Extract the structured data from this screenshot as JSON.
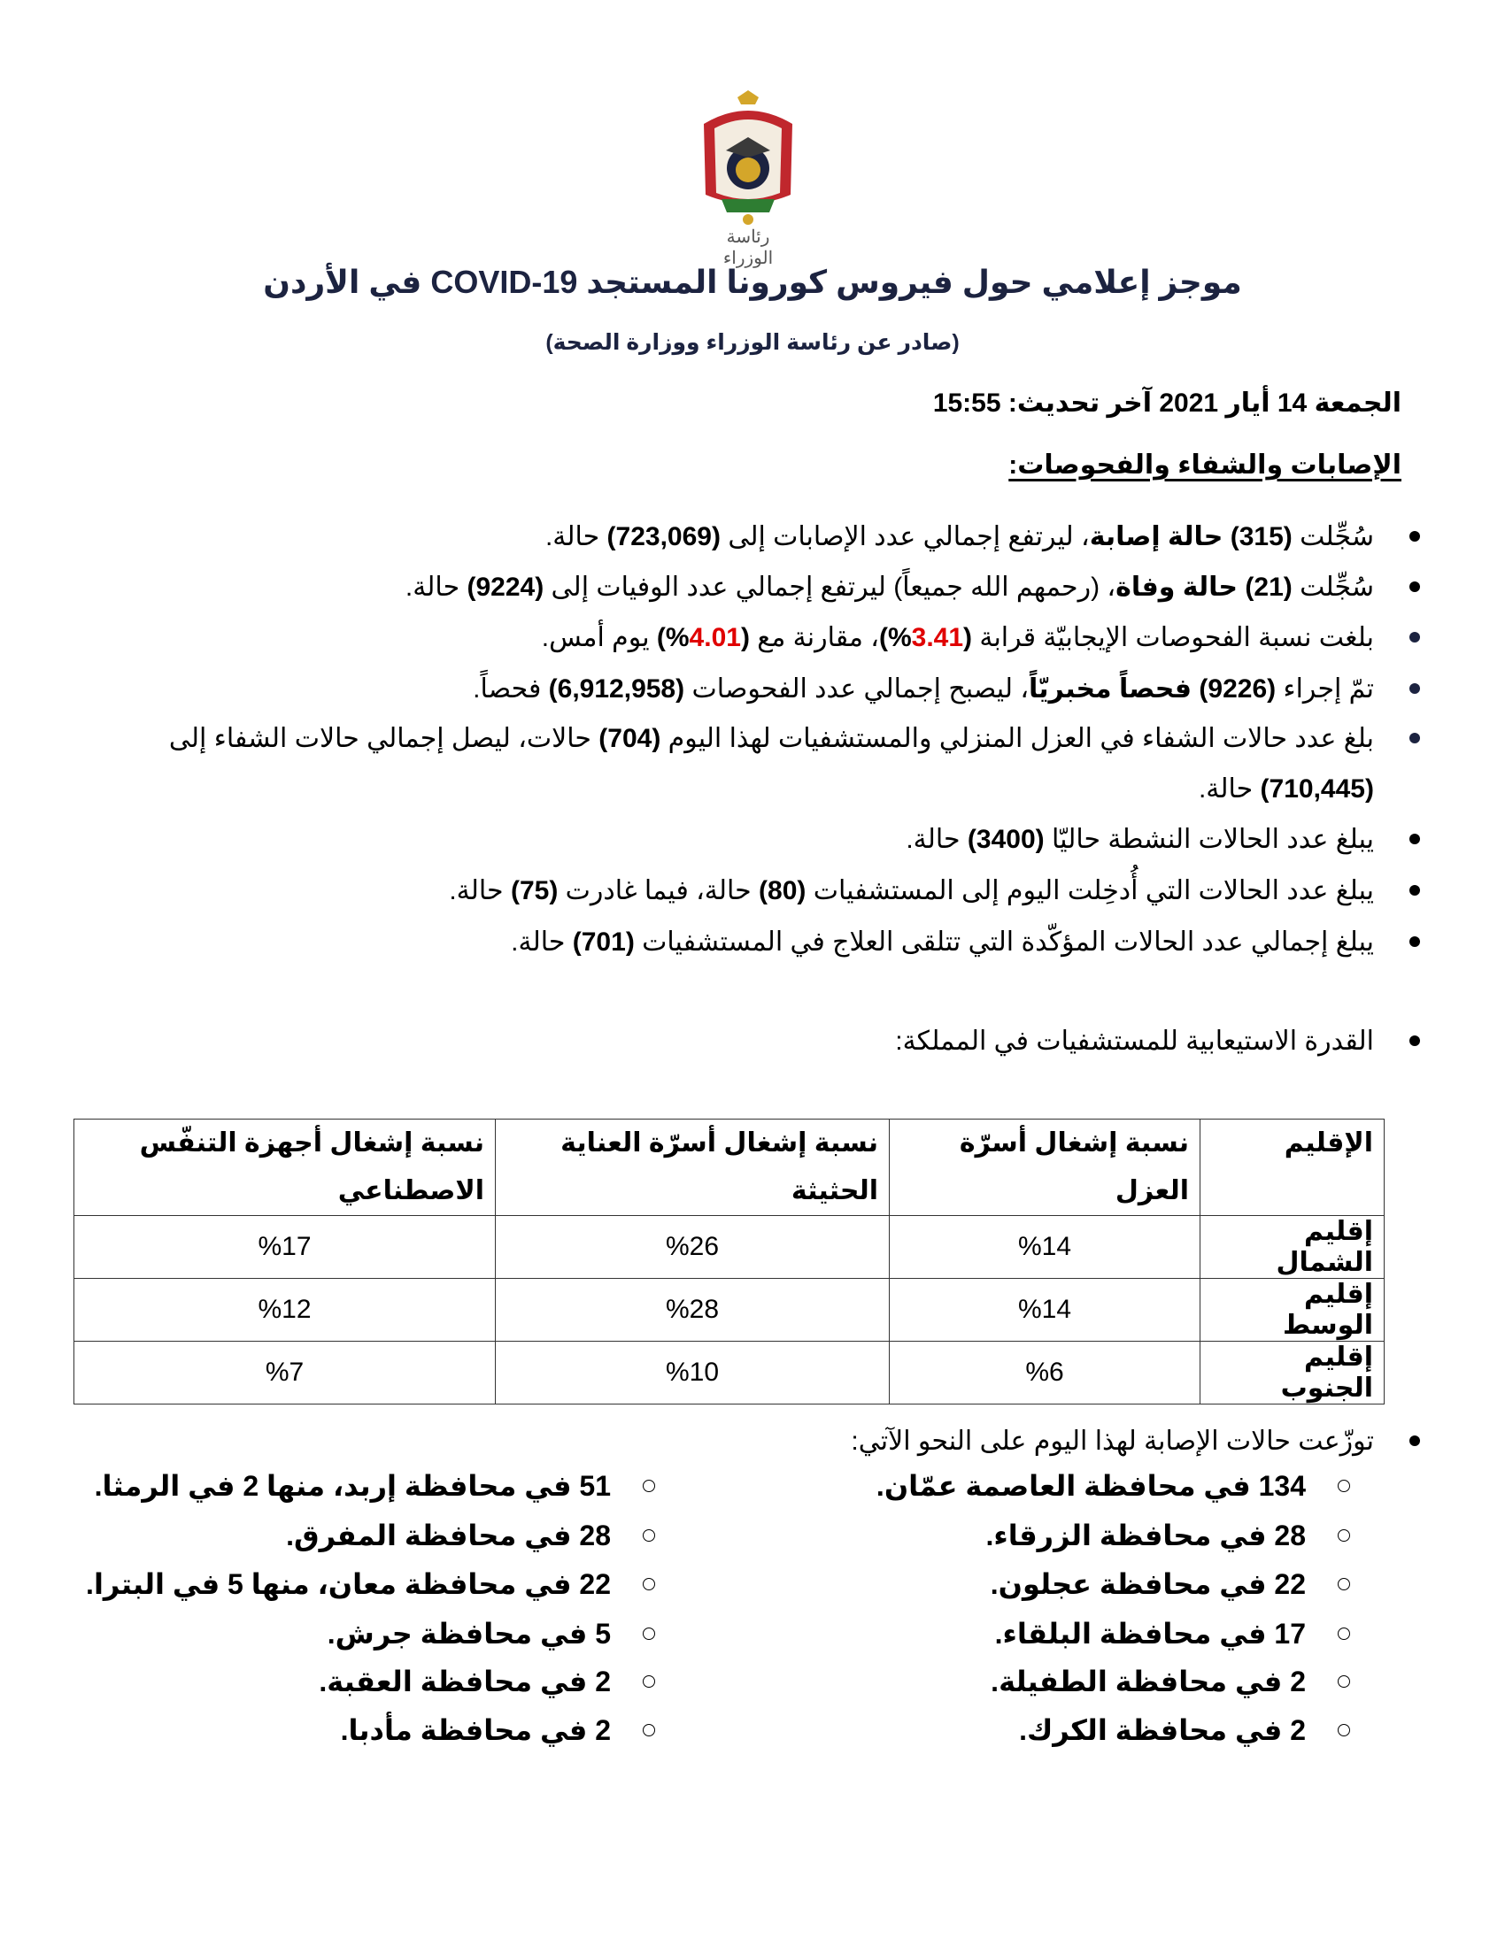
{
  "logo": {
    "caption": "رئاسة الوزراء",
    "colors": {
      "red": "#c0272d",
      "gold": "#d4a62a",
      "navy": "#1c2340"
    }
  },
  "title": "موجز إعلامي حول فيروس كورونا المستجد COVID-19 في الأردن",
  "subtitle": "(صادر عن رئاسة الوزراء ووزارة الصحة)",
  "dateline": "الجمعة 14 أيار 2021 آخر تحديث: 15:55",
  "heading": "الإصابات والشفاء والفحوصات:",
  "bullets": [
    [
      {
        "t": "سُجِّلت "
      },
      {
        "t": "(315) حالة إصابة",
        "b": true
      },
      {
        "t": "، ليرتفع إجمالي عدد الإصابات إلى "
      },
      {
        "t": "(723,069)",
        "b": true
      },
      {
        "t": " حالة."
      }
    ],
    [
      {
        "t": "سُجِّلت "
      },
      {
        "t": "(21) حالة وفاة",
        "b": true
      },
      {
        "t": "، (رحمهم الله جميعاً) ليرتفع إجمالي عدد الوفيات إلى "
      },
      {
        "t": "(9224)",
        "b": true
      },
      {
        "t": " حالة."
      }
    ],
    [
      {
        "t": "بلغت نسبة الفحوصات الإيجابيّة قرابة "
      },
      {
        "t": "(",
        "b": true
      },
      {
        "t": "3.41",
        "red": true
      },
      {
        "t": "%)",
        "b": true
      },
      {
        "t": "، مقارنة مع "
      },
      {
        "t": "(",
        "b": true
      },
      {
        "t": "4.01",
        "red": true
      },
      {
        "t": "%)",
        "b": true
      },
      {
        "t": " يوم أمس."
      }
    ],
    [
      {
        "t": "تمّ إجراء "
      },
      {
        "t": "(9226) فحصاً مخبريّاً",
        "b": true
      },
      {
        "t": "، ليصبح إجمالي عدد الفحوصات "
      },
      {
        "t": "(6,912,958)",
        "b": true
      },
      {
        "t": " فحصاً."
      }
    ],
    [
      {
        "t": "بلغ عدد حالات الشفاء في العزل المنزلي والمستشفيات لهذا اليوم "
      },
      {
        "t": "(704)",
        "b": true
      },
      {
        "t": " حالات، ليصل إجمالي حالات الشفاء إلى "
      },
      {
        "t": "(710,445)",
        "b": true
      },
      {
        "t": " حالة."
      }
    ],
    [
      {
        "t": "يبلغ عدد الحالات النشطة حاليّا "
      },
      {
        "t": "(3400)",
        "b": true
      },
      {
        "t": " حالة."
      }
    ],
    [
      {
        "t": "يبلغ عدد الحالات التي أُدخِلت اليوم إلى المستشفيات "
      },
      {
        "t": "(80)",
        "b": true
      },
      {
        "t": " حالة، فيما غادرت "
      },
      {
        "t": "(75)",
        "b": true
      },
      {
        "t": " حالة."
      }
    ],
    [
      {
        "t": "يبلغ إجمالي عدد الحالات المؤكّدة التي تتلقى العلاج في المستشفيات "
      },
      {
        "t": "(701)",
        "b": true
      },
      {
        "t": " حالة."
      }
    ]
  ],
  "capacity_label": "القدرة الاستيعابية للمستشفيات في المملكة:",
  "table": {
    "headers": [
      "الإقليم",
      "نسبة إشغال أسرّة العزل",
      "نسبة إشغال أسرّة العناية الحثيثة",
      "نسبة إشغال أجهزة التنفّس الاصطناعي"
    ],
    "rows": [
      [
        "إقليم الشمال",
        "%14",
        "%26",
        "%17"
      ],
      [
        "إقليم الوسط",
        "%14",
        "%28",
        "%12"
      ],
      [
        "إقليم الجنوب",
        "%6",
        "%10",
        "%7"
      ]
    ]
  },
  "distribution_label": "توزّعت حالات الإصابة لهذا اليوم على النحو الآتي:",
  "distribution_right": [
    "134 في محافظة العاصمة عمّان.",
    "28 في محافظة الزرقاء.",
    "22 في محافظة عجلون.",
    "17 في محافظة البلقاء.",
    "2 في محافظة الطفيلة.",
    "2 في محافظة الكرك."
  ],
  "distribution_left": [
    "51 في محافظة إربد، منها 2 في الرمثا.",
    "28 في محافظة المفرق.",
    "22 في محافظة معان، منها 5 في البترا.",
    "5 في محافظة جرش.",
    "2 في محافظة العقبة.",
    "2 في محافظة مأدبا."
  ]
}
